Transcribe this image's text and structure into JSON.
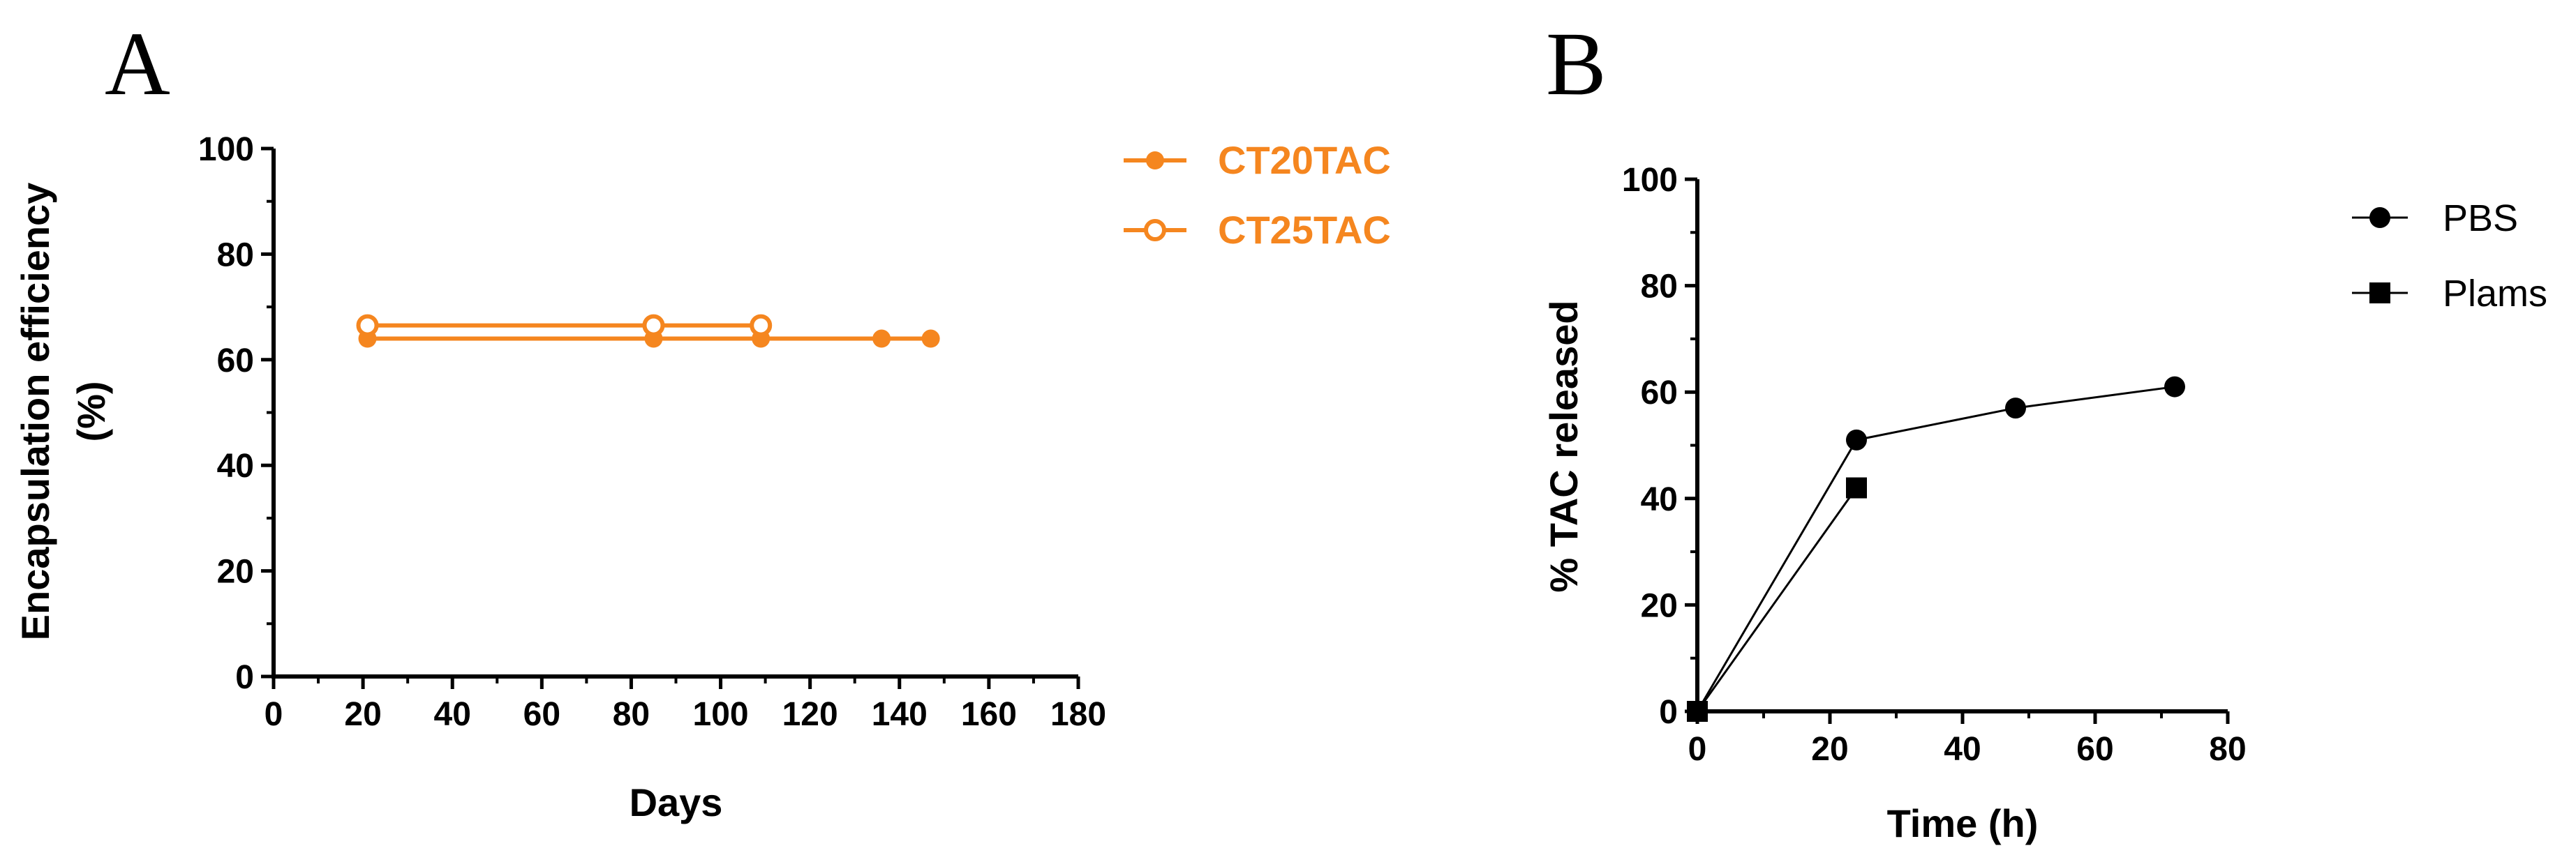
{
  "chart_data": [
    {
      "panel": "A",
      "type": "line",
      "title": "",
      "xlabel": "Days",
      "ylabel_lines": [
        "Encapsulation efficiency",
        "(%)"
      ],
      "xlim": [
        0,
        180
      ],
      "ylim": [
        0,
        100
      ],
      "x_ticks": [
        0,
        20,
        40,
        60,
        80,
        100,
        120,
        140,
        160,
        180
      ],
      "y_ticks": [
        0,
        20,
        40,
        60,
        80,
        100
      ],
      "x_minor_step": 10,
      "y_minor_step": 10,
      "color": "#f5861f",
      "legend_position": "top-right",
      "series": [
        {
          "name": "CT20TAC",
          "marker": "filled-circle",
          "x": [
            21,
            85,
            109,
            136,
            147
          ],
          "y": [
            64,
            64,
            64,
            64,
            64
          ]
        },
        {
          "name": "CT25TAC",
          "marker": "open-circle",
          "x": [
            21,
            85,
            109
          ],
          "y": [
            66.5,
            66.5,
            66.5
          ]
        }
      ]
    },
    {
      "panel": "B",
      "type": "line",
      "title": "",
      "xlabel": "Time (h)",
      "ylabel": "% TAC released",
      "xlim": [
        0,
        80
      ],
      "ylim": [
        0,
        100
      ],
      "x_ticks": [
        0,
        20,
        40,
        60,
        80
      ],
      "y_ticks": [
        0,
        20,
        40,
        60,
        80,
        100
      ],
      "x_minor_step": 10,
      "y_minor_step": 10,
      "color": "#000000",
      "legend_position": "top-right",
      "series": [
        {
          "name": "PBS",
          "marker": "filled-circle",
          "x": [
            0,
            24,
            48,
            72
          ],
          "y": [
            0,
            51,
            57,
            61
          ]
        },
        {
          "name": "Plams",
          "marker": "filled-square",
          "x": [
            0,
            24
          ],
          "y": [
            0,
            42
          ]
        }
      ]
    }
  ]
}
